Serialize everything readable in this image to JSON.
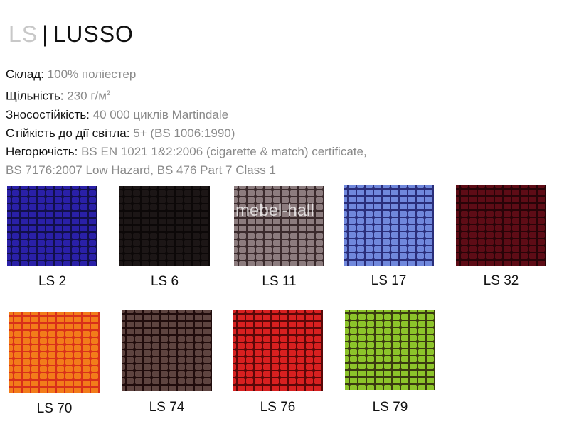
{
  "header": {
    "code": "LS",
    "separator": "|",
    "name": "LUSSO"
  },
  "specs": [
    {
      "label": "Склад:",
      "value": "100% поліестер"
    },
    {
      "label": "Щільність:",
      "value": "230 г/м",
      "sup": "2"
    },
    {
      "label": "Зносостійкість:",
      "value": "40 000 циклів Martindale"
    },
    {
      "label": "Стійкість до дії світла:",
      "value": "5+ (BS 1006:1990)"
    },
    {
      "label": "Негорючість:",
      "value": "BS EN 1021 1&2:2006 (cigarette & match) certificate,",
      "value2": "BS 7176:2007 Low Hazard, BS 476 Part 7 Class 1"
    }
  ],
  "watermark": "mebel-hall",
  "swatches": [
    {
      "label": "LS 2",
      "color": "#2a20a8",
      "pattern": "#12104a"
    },
    {
      "label": "LS 6",
      "color": "#1c1616",
      "pattern": "#0c0808"
    },
    {
      "label": "LS 11",
      "color": "#8c7c7e",
      "pattern": "#3a2a2c"
    },
    {
      "label": "LS 17",
      "color": "#7088dc",
      "pattern": "#2a2e7a"
    },
    {
      "label": "LS 32",
      "color": "#5e0c16",
      "pattern": "#280408"
    },
    {
      "label": "LS 70",
      "color": "#f27c1a",
      "pattern": "#d8301a"
    },
    {
      "label": "LS 74",
      "color": "#5e4440",
      "pattern": "#200c0c"
    },
    {
      "label": "LS 76",
      "color": "#d82020",
      "pattern": "#5a0808"
    },
    {
      "label": "LS 79",
      "color": "#8cc42a",
      "pattern": "#3a3a10"
    }
  ]
}
